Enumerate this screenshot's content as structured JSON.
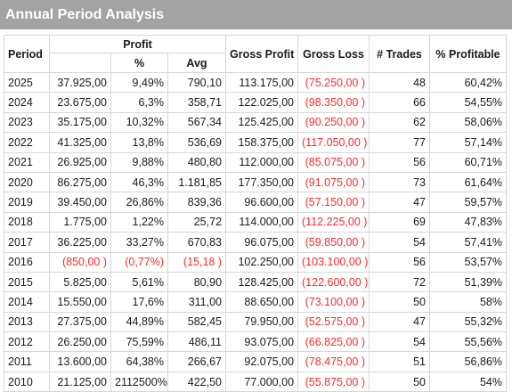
{
  "title": "Annual Period Analysis",
  "headers": {
    "period": "Period",
    "profit": "Profit",
    "profit_pct": "%",
    "profit_avg": "Avg",
    "gross_profit": "Gross Profit",
    "gross_loss": "Gross Loss",
    "trades": "# Trades",
    "pct_profitable": "% Profitable"
  },
  "rows": [
    {
      "period": "2025",
      "profit": "37.925,00",
      "pct": "9,49%",
      "avg": "790,10",
      "gross_profit": "113.175,00",
      "gross_loss": "(75.250,00 )",
      "trades": "48",
      "pct_profitable": "60,42%",
      "negative_profit": false
    },
    {
      "period": "2024",
      "profit": "23.675,00",
      "pct": "6,3%",
      "avg": "358,71",
      "gross_profit": "122.025,00",
      "gross_loss": "(98.350,00 )",
      "trades": "66",
      "pct_profitable": "54,55%",
      "negative_profit": false
    },
    {
      "period": "2023",
      "profit": "35.175,00",
      "pct": "10,32%",
      "avg": "567,34",
      "gross_profit": "125.425,00",
      "gross_loss": "(90.250,00 )",
      "trades": "62",
      "pct_profitable": "58,06%",
      "negative_profit": false
    },
    {
      "period": "2022",
      "profit": "41.325,00",
      "pct": "13,8%",
      "avg": "536,69",
      "gross_profit": "158.375,00",
      "gross_loss": "(117.050,00 )",
      "trades": "77",
      "pct_profitable": "57,14%",
      "negative_profit": false
    },
    {
      "period": "2021",
      "profit": "26.925,00",
      "pct": "9,88%",
      "avg": "480,80",
      "gross_profit": "112.000,00",
      "gross_loss": "(85.075,00 )",
      "trades": "56",
      "pct_profitable": "60,71%",
      "negative_profit": false
    },
    {
      "period": "2020",
      "profit": "86.275,00",
      "pct": "46,3%",
      "avg": "1.181,85",
      "gross_profit": "177.350,00",
      "gross_loss": "(91.075,00 )",
      "trades": "73",
      "pct_profitable": "61,64%",
      "negative_profit": false
    },
    {
      "period": "2019",
      "profit": "39.450,00",
      "pct": "26,86%",
      "avg": "839,36",
      "gross_profit": "96.600,00",
      "gross_loss": "(57.150,00 )",
      "trades": "47",
      "pct_profitable": "59,57%",
      "negative_profit": false
    },
    {
      "period": "2018",
      "profit": "1.775,00",
      "pct": "1,22%",
      "avg": "25,72",
      "gross_profit": "114.000,00",
      "gross_loss": "(112.225,00 )",
      "trades": "69",
      "pct_profitable": "47,83%",
      "negative_profit": false
    },
    {
      "period": "2017",
      "profit": "36.225,00",
      "pct": "33,27%",
      "avg": "670,83",
      "gross_profit": "96.075,00",
      "gross_loss": "(59.850,00 )",
      "trades": "54",
      "pct_profitable": "57,41%",
      "negative_profit": false
    },
    {
      "period": "2016",
      "profit": "(850,00 )",
      "pct": "(0,77%)",
      "avg": "(15,18 )",
      "gross_profit": "102.250,00",
      "gross_loss": "(103.100,00 )",
      "trades": "56",
      "pct_profitable": "53,57%",
      "negative_profit": true
    },
    {
      "period": "2015",
      "profit": "5.825,00",
      "pct": "5,61%",
      "avg": "80,90",
      "gross_profit": "128.425,00",
      "gross_loss": "(122.600,00 )",
      "trades": "72",
      "pct_profitable": "51,39%",
      "negative_profit": false
    },
    {
      "period": "2014",
      "profit": "15.550,00",
      "pct": "17,6%",
      "avg": "311,00",
      "gross_profit": "88.650,00",
      "gross_loss": "(73.100,00 )",
      "trades": "50",
      "pct_profitable": "58%",
      "negative_profit": false
    },
    {
      "period": "2013",
      "profit": "27.375,00",
      "pct": "44,89%",
      "avg": "582,45",
      "gross_profit": "79.950,00",
      "gross_loss": "(52.575,00 )",
      "trades": "47",
      "pct_profitable": "55,32%",
      "negative_profit": false
    },
    {
      "period": "2012",
      "profit": "26.250,00",
      "pct": "75,59%",
      "avg": "486,11",
      "gross_profit": "93.075,00",
      "gross_loss": "(66.825,00 )",
      "trades": "54",
      "pct_profitable": "55,56%",
      "negative_profit": false
    },
    {
      "period": "2011",
      "profit": "13.600,00",
      "pct": "64,38%",
      "avg": "266,67",
      "gross_profit": "92.075,00",
      "gross_loss": "(78.475,00 )",
      "trades": "51",
      "pct_profitable": "56,86%",
      "negative_profit": false
    },
    {
      "period": "2010",
      "profit": "21.125,00",
      "pct": "2112500%",
      "avg": "422,50",
      "gross_profit": "77.000,00",
      "gross_loss": "(55.875,00 )",
      "trades": "50",
      "pct_profitable": "54%",
      "negative_profit": false
    }
  ],
  "colors": {
    "title_bar": "#a3a3a3",
    "negative": "#ff2b2b",
    "grid_line": "#d6d6d6"
  }
}
